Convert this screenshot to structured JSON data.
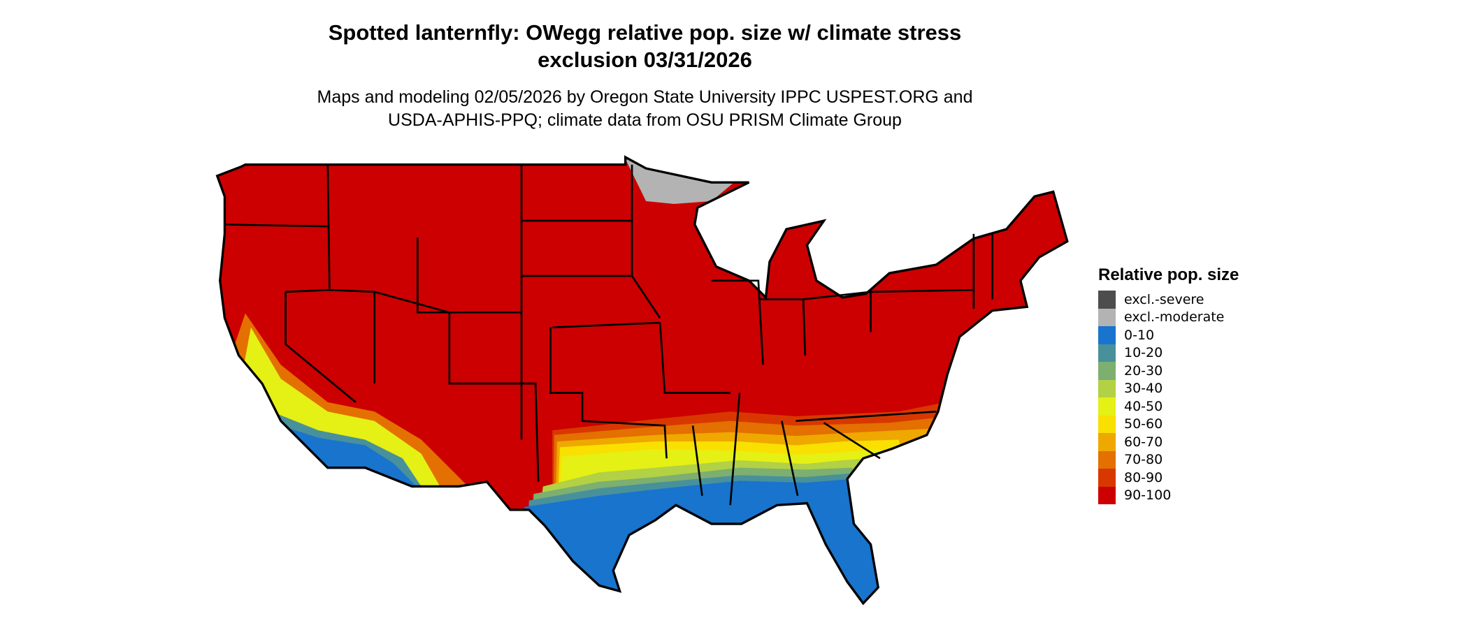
{
  "title": {
    "line1": "Spotted lanternfly: OWegg relative pop. size w/ climate stress",
    "line2": "exclusion 03/31/2026"
  },
  "subtitle": {
    "line1": "Maps and modeling 02/05/2026 by Oregon State University IPPC USPEST.ORG and",
    "line2": "USDA-APHIS-PPQ; climate data from OSU PRISM Climate Group"
  },
  "legend": {
    "title": "Relative pop. size",
    "items": [
      {
        "label": "excl.-severe",
        "color": "#4d4d4d"
      },
      {
        "label": "excl.-moderate",
        "color": "#b3b3b3"
      },
      {
        "label": "0-10",
        "color": "#1874cd"
      },
      {
        "label": "10-20",
        "color": "#48919b"
      },
      {
        "label": "20-30",
        "color": "#7caf70"
      },
      {
        "label": "30-40",
        "color": "#b2d145"
      },
      {
        "label": "40-50",
        "color": "#e5f015"
      },
      {
        "label": "50-60",
        "color": "#f9e000"
      },
      {
        "label": "60-70",
        "color": "#eea800"
      },
      {
        "label": "70-80",
        "color": "#e37000"
      },
      {
        "label": "80-90",
        "color": "#d83800"
      },
      {
        "label": "90-100",
        "color": "#cc0000"
      }
    ]
  }
}
